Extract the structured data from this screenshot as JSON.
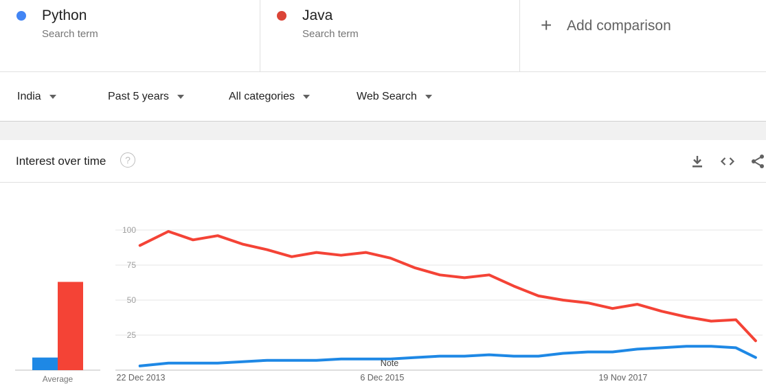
{
  "terms": [
    {
      "name": "Python",
      "sub": "Search term",
      "color": "#4285f4"
    },
    {
      "name": "Java",
      "sub": "Search term",
      "color": "#db4437"
    }
  ],
  "add_comparison": {
    "icon": "plus-icon",
    "label": "Add comparison"
  },
  "filters": {
    "region": "India",
    "time": "Past 5 years",
    "category": "All categories",
    "search_type": "Web Search"
  },
  "card": {
    "title": "Interest over time",
    "help": "?",
    "tools": [
      "download-icon",
      "embed-icon",
      "share-icon"
    ]
  },
  "chart_data": [
    {
      "type": "bar",
      "categories": [
        "Python",
        "Java"
      ],
      "values": [
        9,
        63
      ],
      "xlabel": "Average",
      "ylim": [
        0,
        100
      ],
      "colors": [
        "#1e88e5",
        "#f44336"
      ]
    },
    {
      "type": "line",
      "x_tick_labels": [
        "22 Dec 2013",
        "6 Dec 2015",
        "19 Nov 2017"
      ],
      "x_range": [
        "2013-12-22",
        "2018-12-16"
      ],
      "y_ticks": [
        25,
        50,
        75,
        100
      ],
      "ylim": [
        0,
        100
      ],
      "grid": true,
      "annotation": "Note",
      "x_years": [
        2013.97,
        2014.2,
        2014.4,
        2014.6,
        2014.8,
        2015.0,
        2015.2,
        2015.4,
        2015.6,
        2015.8,
        2016.0,
        2016.2,
        2016.4,
        2016.6,
        2016.8,
        2017.0,
        2017.2,
        2017.4,
        2017.6,
        2017.8,
        2018.0,
        2018.2,
        2018.4,
        2018.6,
        2018.8,
        2018.96
      ],
      "series": [
        {
          "name": "Python",
          "color": "#1e88e5",
          "values": [
            3,
            5,
            5,
            5,
            6,
            7,
            7,
            7,
            8,
            8,
            8,
            9,
            10,
            10,
            11,
            10,
            10,
            12,
            13,
            13,
            15,
            16,
            17,
            17,
            16,
            9
          ]
        },
        {
          "name": "Java",
          "color": "#f44336",
          "values": [
            89,
            99,
            93,
            96,
            90,
            86,
            81,
            84,
            82,
            84,
            80,
            73,
            68,
            66,
            68,
            60,
            53,
            50,
            48,
            44,
            47,
            42,
            38,
            35,
            36,
            21
          ]
        }
      ]
    }
  ]
}
